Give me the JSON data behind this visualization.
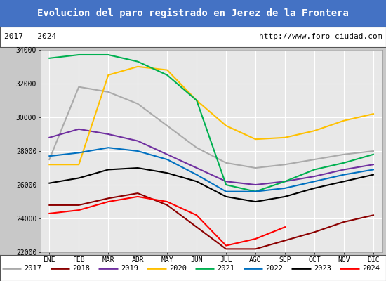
{
  "title": "Evolucion del paro registrado en Jerez de la Frontera",
  "subtitle_left": "2017 - 2024",
  "subtitle_right": "http://www.foro-ciudad.com",
  "title_bg": "#4472c4",
  "months": [
    "ENE",
    "FEB",
    "MAR",
    "ABR",
    "MAY",
    "JUN",
    "JUL",
    "AGO",
    "SEP",
    "OCT",
    "NOV",
    "DIC"
  ],
  "series": {
    "2017": {
      "color": "#aaaaaa",
      "data": [
        27500,
        31800,
        31500,
        30800,
        29500,
        28200,
        27300,
        27000,
        27200,
        27500,
        27800,
        28000
      ]
    },
    "2018": {
      "color": "#8B0000",
      "data": [
        24800,
        24800,
        25200,
        25500,
        24800,
        23500,
        22200,
        22200,
        22700,
        23200,
        23800,
        24200
      ]
    },
    "2019": {
      "color": "#7030a0",
      "data": [
        28800,
        29300,
        29000,
        28600,
        27800,
        27000,
        26200,
        26000,
        26200,
        26500,
        26900,
        27200
      ]
    },
    "2020": {
      "color": "#ffc000",
      "data": [
        27200,
        27200,
        32500,
        33000,
        32800,
        31000,
        29500,
        28700,
        28800,
        29200,
        29800,
        30200
      ]
    },
    "2021": {
      "color": "#00b050",
      "data": [
        33500,
        33700,
        33700,
        33300,
        32500,
        31000,
        26000,
        25600,
        26200,
        26900,
        27300,
        27800
      ]
    },
    "2022": {
      "color": "#0070c0",
      "data": [
        27700,
        27900,
        28200,
        28000,
        27500,
        26600,
        25600,
        25600,
        25800,
        26200,
        26600,
        26900
      ]
    },
    "2023": {
      "color": "#000000",
      "data": [
        26100,
        26400,
        26900,
        27000,
        26700,
        26200,
        25300,
        25000,
        25300,
        25800,
        26200,
        26600
      ]
    },
    "2024": {
      "color": "#ff0000",
      "data": [
        24300,
        24500,
        25000,
        25300,
        25000,
        24200,
        22400,
        22800,
        23500,
        null,
        null,
        null
      ]
    }
  },
  "ylim": [
    22000,
    34000
  ],
  "yticks": [
    22000,
    24000,
    26000,
    28000,
    30000,
    32000,
    34000
  ],
  "fig_bg": "#c8c8c8",
  "plot_bg": "#e8e8e8",
  "grid_color": "#ffffff"
}
